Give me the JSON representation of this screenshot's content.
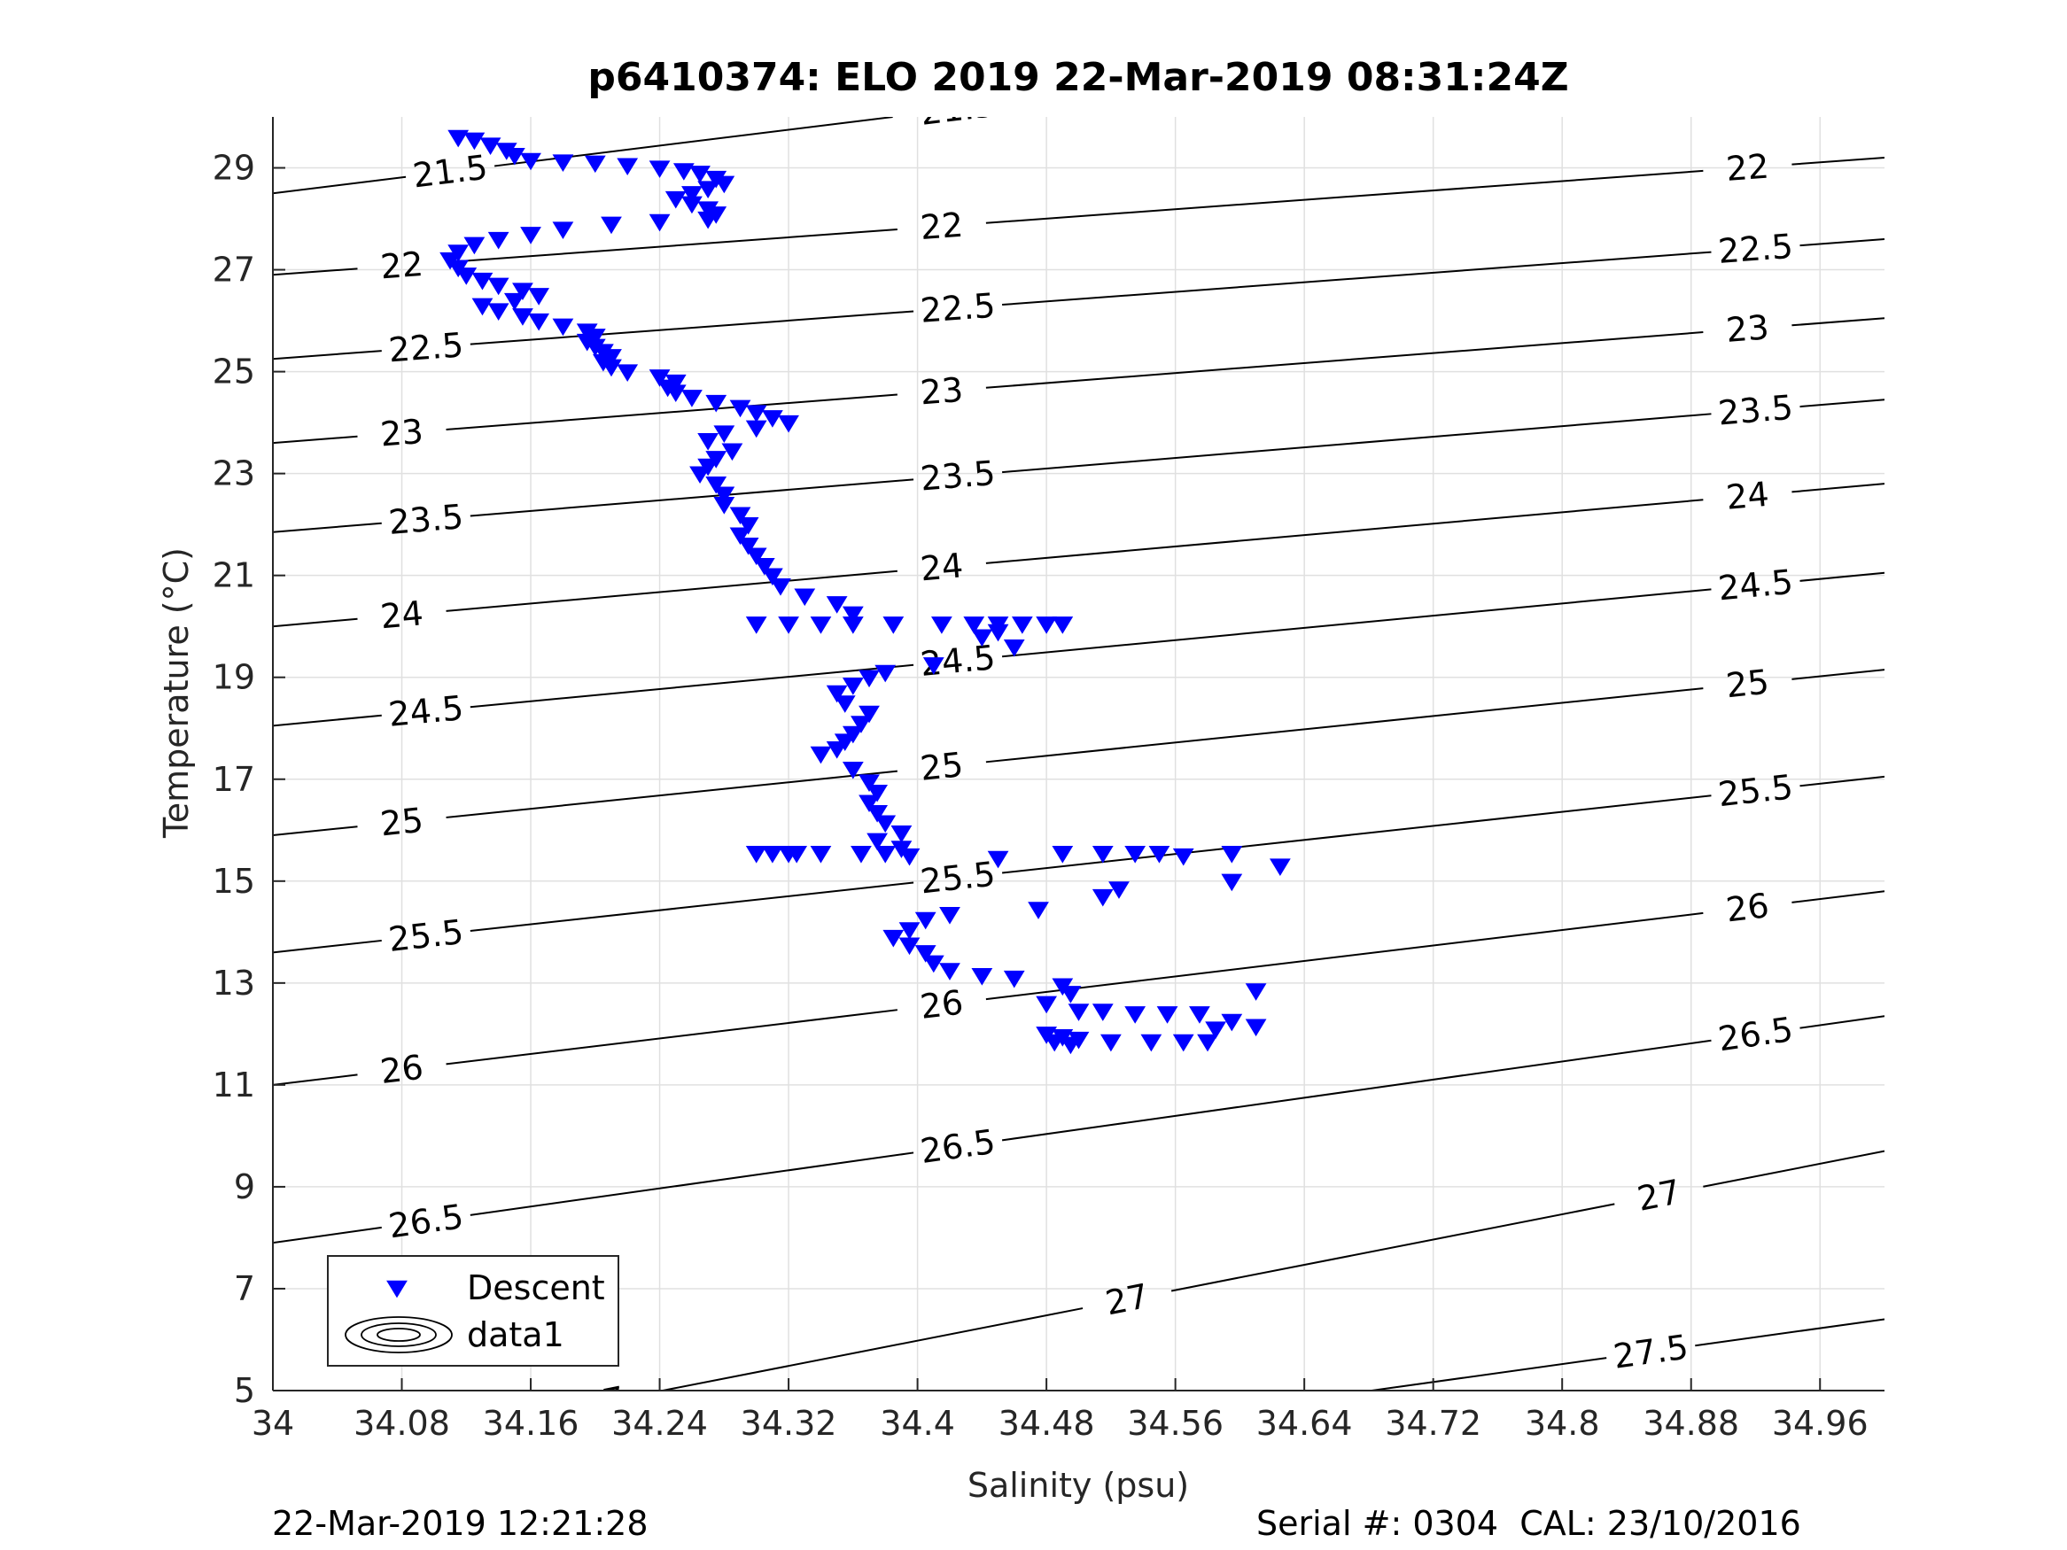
{
  "chart_data": {
    "type": "scatter",
    "title": "p6410374: ELO 2019 22-Mar-2019 08:31:24Z",
    "xlabel": "Salinity (psu)",
    "ylabel": "Temperature (°C)",
    "xlim": [
      34.0,
      35.0
    ],
    "ylim": [
      5,
      30
    ],
    "grid": true,
    "legend_position": "bottom-left",
    "x_ticks": [
      34,
      34.08,
      34.16,
      34.24,
      34.32,
      34.4,
      34.48,
      34.56,
      34.64,
      34.72,
      34.8,
      34.88,
      34.96
    ],
    "x_tick_labels": [
      "34",
      "34.08",
      "34.16",
      "34.24",
      "34.32",
      "34.4",
      "34.48",
      "34.56",
      "34.64",
      "34.72",
      "34.8",
      "34.88",
      "34.96"
    ],
    "y_ticks": [
      5,
      7,
      9,
      11,
      13,
      15,
      17,
      19,
      21,
      23,
      25,
      27,
      29
    ],
    "y_tick_labels": [
      "5",
      "7",
      "9",
      "11",
      "13",
      "15",
      "17",
      "19",
      "21",
      "23",
      "25",
      "27",
      "29"
    ],
    "legend": [
      {
        "name": "Descent",
        "marker": "triangle-down",
        "color": "#0000ff"
      },
      {
        "name": "data1",
        "marker": "contour-ellipses",
        "color": "#000000"
      }
    ],
    "series": [
      {
        "name": "Descent",
        "color": "#0000ff",
        "marker": "triangle-down",
        "points": [
          [
            34.115,
            29.6
          ],
          [
            34.125,
            29.55
          ],
          [
            34.135,
            29.45
          ],
          [
            34.145,
            29.35
          ],
          [
            34.15,
            29.25
          ],
          [
            34.16,
            29.15
          ],
          [
            34.18,
            29.12
          ],
          [
            34.2,
            29.1
          ],
          [
            34.22,
            29.05
          ],
          [
            34.24,
            29.0
          ],
          [
            34.255,
            28.95
          ],
          [
            34.265,
            28.9
          ],
          [
            34.275,
            28.8
          ],
          [
            34.28,
            28.7
          ],
          [
            34.27,
            28.6
          ],
          [
            34.26,
            28.5
          ],
          [
            34.25,
            28.4
          ],
          [
            34.26,
            28.3
          ],
          [
            34.27,
            28.2
          ],
          [
            34.275,
            28.1
          ],
          [
            34.27,
            28.0
          ],
          [
            34.24,
            27.95
          ],
          [
            34.21,
            27.9
          ],
          [
            34.18,
            27.8
          ],
          [
            34.16,
            27.7
          ],
          [
            34.14,
            27.6
          ],
          [
            34.125,
            27.5
          ],
          [
            34.115,
            27.35
          ],
          [
            34.11,
            27.2
          ],
          [
            34.115,
            27.05
          ],
          [
            34.12,
            26.9
          ],
          [
            34.13,
            26.8
          ],
          [
            34.14,
            26.7
          ],
          [
            34.155,
            26.6
          ],
          [
            34.165,
            26.5
          ],
          [
            34.15,
            26.4
          ],
          [
            34.13,
            26.3
          ],
          [
            34.14,
            26.2
          ],
          [
            34.155,
            26.1
          ],
          [
            34.165,
            26.0
          ],
          [
            34.18,
            25.9
          ],
          [
            34.195,
            25.8
          ],
          [
            34.2,
            25.7
          ],
          [
            34.195,
            25.6
          ],
          [
            34.2,
            25.5
          ],
          [
            34.205,
            25.4
          ],
          [
            34.21,
            25.3
          ],
          [
            34.205,
            25.2
          ],
          [
            34.21,
            25.1
          ],
          [
            34.22,
            25.0
          ],
          [
            34.24,
            24.9
          ],
          [
            34.25,
            24.8
          ],
          [
            34.245,
            24.7
          ],
          [
            34.25,
            24.6
          ],
          [
            34.26,
            24.5
          ],
          [
            34.275,
            24.4
          ],
          [
            34.29,
            24.3
          ],
          [
            34.3,
            24.2
          ],
          [
            34.31,
            24.1
          ],
          [
            34.32,
            24.0
          ],
          [
            34.3,
            23.9
          ],
          [
            34.28,
            23.8
          ],
          [
            34.27,
            23.65
          ],
          [
            34.285,
            23.45
          ],
          [
            34.275,
            23.3
          ],
          [
            34.27,
            23.15
          ],
          [
            34.265,
            23.0
          ],
          [
            34.275,
            22.8
          ],
          [
            34.28,
            22.6
          ],
          [
            34.28,
            22.4
          ],
          [
            34.29,
            22.2
          ],
          [
            34.295,
            22.0
          ],
          [
            34.29,
            21.8
          ],
          [
            34.295,
            21.6
          ],
          [
            34.3,
            21.4
          ],
          [
            34.305,
            21.2
          ],
          [
            34.31,
            21.0
          ],
          [
            34.315,
            20.8
          ],
          [
            34.33,
            20.6
          ],
          [
            34.35,
            20.45
          ],
          [
            34.36,
            20.25
          ],
          [
            34.3,
            20.05
          ],
          [
            34.32,
            20.05
          ],
          [
            34.34,
            20.05
          ],
          [
            34.36,
            20.05
          ],
          [
            34.385,
            20.05
          ],
          [
            34.415,
            20.05
          ],
          [
            34.435,
            20.05
          ],
          [
            34.45,
            20.05
          ],
          [
            34.465,
            20.05
          ],
          [
            34.48,
            20.05
          ],
          [
            34.49,
            20.05
          ],
          [
            34.45,
            19.9
          ],
          [
            34.44,
            19.8
          ],
          [
            34.46,
            19.6
          ],
          [
            34.41,
            19.25
          ],
          [
            34.38,
            19.1
          ],
          [
            34.37,
            19.0
          ],
          [
            34.36,
            18.85
          ],
          [
            34.35,
            18.7
          ],
          [
            34.355,
            18.5
          ],
          [
            34.37,
            18.3
          ],
          [
            34.365,
            18.1
          ],
          [
            34.36,
            17.9
          ],
          [
            34.355,
            17.75
          ],
          [
            34.35,
            17.6
          ],
          [
            34.34,
            17.5
          ],
          [
            34.36,
            17.2
          ],
          [
            34.37,
            16.95
          ],
          [
            34.375,
            16.75
          ],
          [
            34.37,
            16.55
          ],
          [
            34.375,
            16.35
          ],
          [
            34.38,
            16.15
          ],
          [
            34.39,
            15.95
          ],
          [
            34.375,
            15.8
          ],
          [
            34.39,
            15.65
          ],
          [
            34.395,
            15.5
          ],
          [
            34.3,
            15.55
          ],
          [
            34.31,
            15.55
          ],
          [
            34.32,
            15.55
          ],
          [
            34.325,
            15.55
          ],
          [
            34.34,
            15.55
          ],
          [
            34.365,
            15.55
          ],
          [
            34.38,
            15.55
          ],
          [
            34.45,
            15.45
          ],
          [
            34.49,
            15.55
          ],
          [
            34.515,
            15.55
          ],
          [
            34.535,
            15.55
          ],
          [
            34.55,
            15.55
          ],
          [
            34.565,
            15.5
          ],
          [
            34.595,
            15.55
          ],
          [
            34.625,
            15.3
          ],
          [
            34.595,
            15.0
          ],
          [
            34.525,
            14.85
          ],
          [
            34.515,
            14.7
          ],
          [
            34.475,
            14.45
          ],
          [
            34.42,
            14.35
          ],
          [
            34.405,
            14.25
          ],
          [
            34.395,
            14.05
          ],
          [
            34.385,
            13.9
          ],
          [
            34.395,
            13.75
          ],
          [
            34.405,
            13.6
          ],
          [
            34.41,
            13.4
          ],
          [
            34.42,
            13.25
          ],
          [
            34.44,
            13.15
          ],
          [
            34.46,
            13.1
          ],
          [
            34.49,
            12.95
          ],
          [
            34.495,
            12.8
          ],
          [
            34.48,
            12.6
          ],
          [
            34.5,
            12.45
          ],
          [
            34.515,
            12.45
          ],
          [
            34.535,
            12.4
          ],
          [
            34.555,
            12.4
          ],
          [
            34.575,
            12.4
          ],
          [
            34.61,
            12.85
          ],
          [
            34.595,
            12.25
          ],
          [
            34.61,
            12.15
          ],
          [
            34.585,
            12.1
          ],
          [
            34.48,
            12.0
          ],
          [
            34.49,
            11.95
          ],
          [
            34.5,
            11.9
          ],
          [
            34.52,
            11.85
          ],
          [
            34.545,
            11.85
          ],
          [
            34.565,
            11.85
          ],
          [
            34.58,
            11.85
          ],
          [
            34.485,
            11.85
          ],
          [
            34.495,
            11.8
          ]
        ]
      }
    ],
    "isopycnals": [
      {
        "label": "21.5",
        "t_at_34": 28.5,
        "t_at_35": 32.4,
        "label_positions": [
          [
            34.11,
            28.85
          ],
          [
            34.425,
            30.55
          ]
        ]
      },
      {
        "label": "22",
        "t_at_34": 26.9,
        "t_at_35": 29.2,
        "label_positions": [
          [
            34.08,
            27.05
          ],
          [
            34.415,
            27.9
          ],
          [
            34.915,
            28.9
          ]
        ]
      },
      {
        "label": "22.5",
        "t_at_34": 25.25,
        "t_at_35": 27.6,
        "label_positions": [
          [
            34.095,
            25.55
          ],
          [
            34.425,
            26.35
          ],
          [
            34.92,
            27.25
          ]
        ]
      },
      {
        "label": "23",
        "t_at_34": 23.6,
        "t_at_35": 26.05,
        "label_positions": [
          [
            34.08,
            23.85
          ],
          [
            34.415,
            24.75
          ],
          [
            34.915,
            25.7
          ]
        ]
      },
      {
        "label": "23.5",
        "t_at_34": 21.85,
        "t_at_35": 24.45,
        "label_positions": [
          [
            34.095,
            22.2
          ],
          [
            34.425,
            23.15
          ],
          [
            34.92,
            24.15
          ]
        ]
      },
      {
        "label": "24",
        "t_at_34": 20.0,
        "t_at_35": 22.8,
        "label_positions": [
          [
            34.08,
            20.4
          ],
          [
            34.415,
            21.3
          ],
          [
            34.915,
            22.45
          ]
        ]
      },
      {
        "label": "24.5",
        "t_at_34": 18.05,
        "t_at_35": 21.05,
        "label_positions": [
          [
            34.095,
            18.45
          ],
          [
            34.425,
            19.3
          ],
          [
            34.92,
            20.6
          ]
        ]
      },
      {
        "label": "25",
        "t_at_34": 15.9,
        "t_at_35": 19.15,
        "label_positions": [
          [
            34.08,
            16.35
          ],
          [
            34.415,
            17.3
          ],
          [
            34.915,
            18.6
          ]
        ]
      },
      {
        "label": "25.5",
        "t_at_34": 13.6,
        "t_at_35": 17.05,
        "label_positions": [
          [
            34.095,
            14.05
          ],
          [
            34.425,
            15.2
          ],
          [
            34.92,
            16.6
          ]
        ]
      },
      {
        "label": "26",
        "t_at_34": 11.0,
        "t_at_35": 14.8,
        "label_positions": [
          [
            34.08,
            11.6
          ],
          [
            34.415,
            12.85
          ],
          [
            34.915,
            14.25
          ]
        ]
      },
      {
        "label": "26.5",
        "t_at_34": 7.9,
        "t_at_35": 12.35,
        "label_positions": [
          [
            34.095,
            8.75
          ],
          [
            34.425,
            10.0
          ],
          [
            34.92,
            11.7
          ]
        ]
      },
      {
        "label": "27",
        "t_at_34": 3.5,
        "t_at_35": 9.7,
        "label_positions": [
          [
            34.205,
            5.45
          ],
          [
            34.53,
            7.7
          ],
          [
            34.86,
            9.05
          ]
        ]
      },
      {
        "label": "27.5",
        "t_at_34": 2.0,
        "t_at_35": 6.4,
        "label_positions": [
          [
            34.855,
            5.55
          ]
        ]
      }
    ]
  },
  "footer": {
    "timestamp": "22-Mar-2019 12:21:28",
    "serial": "Serial #: 0304  CAL: 23/10/2016"
  },
  "colors": {
    "marker": "#0000ff",
    "contour": "#000000",
    "grid": "#e0e0e0",
    "axis": "#262626"
  }
}
